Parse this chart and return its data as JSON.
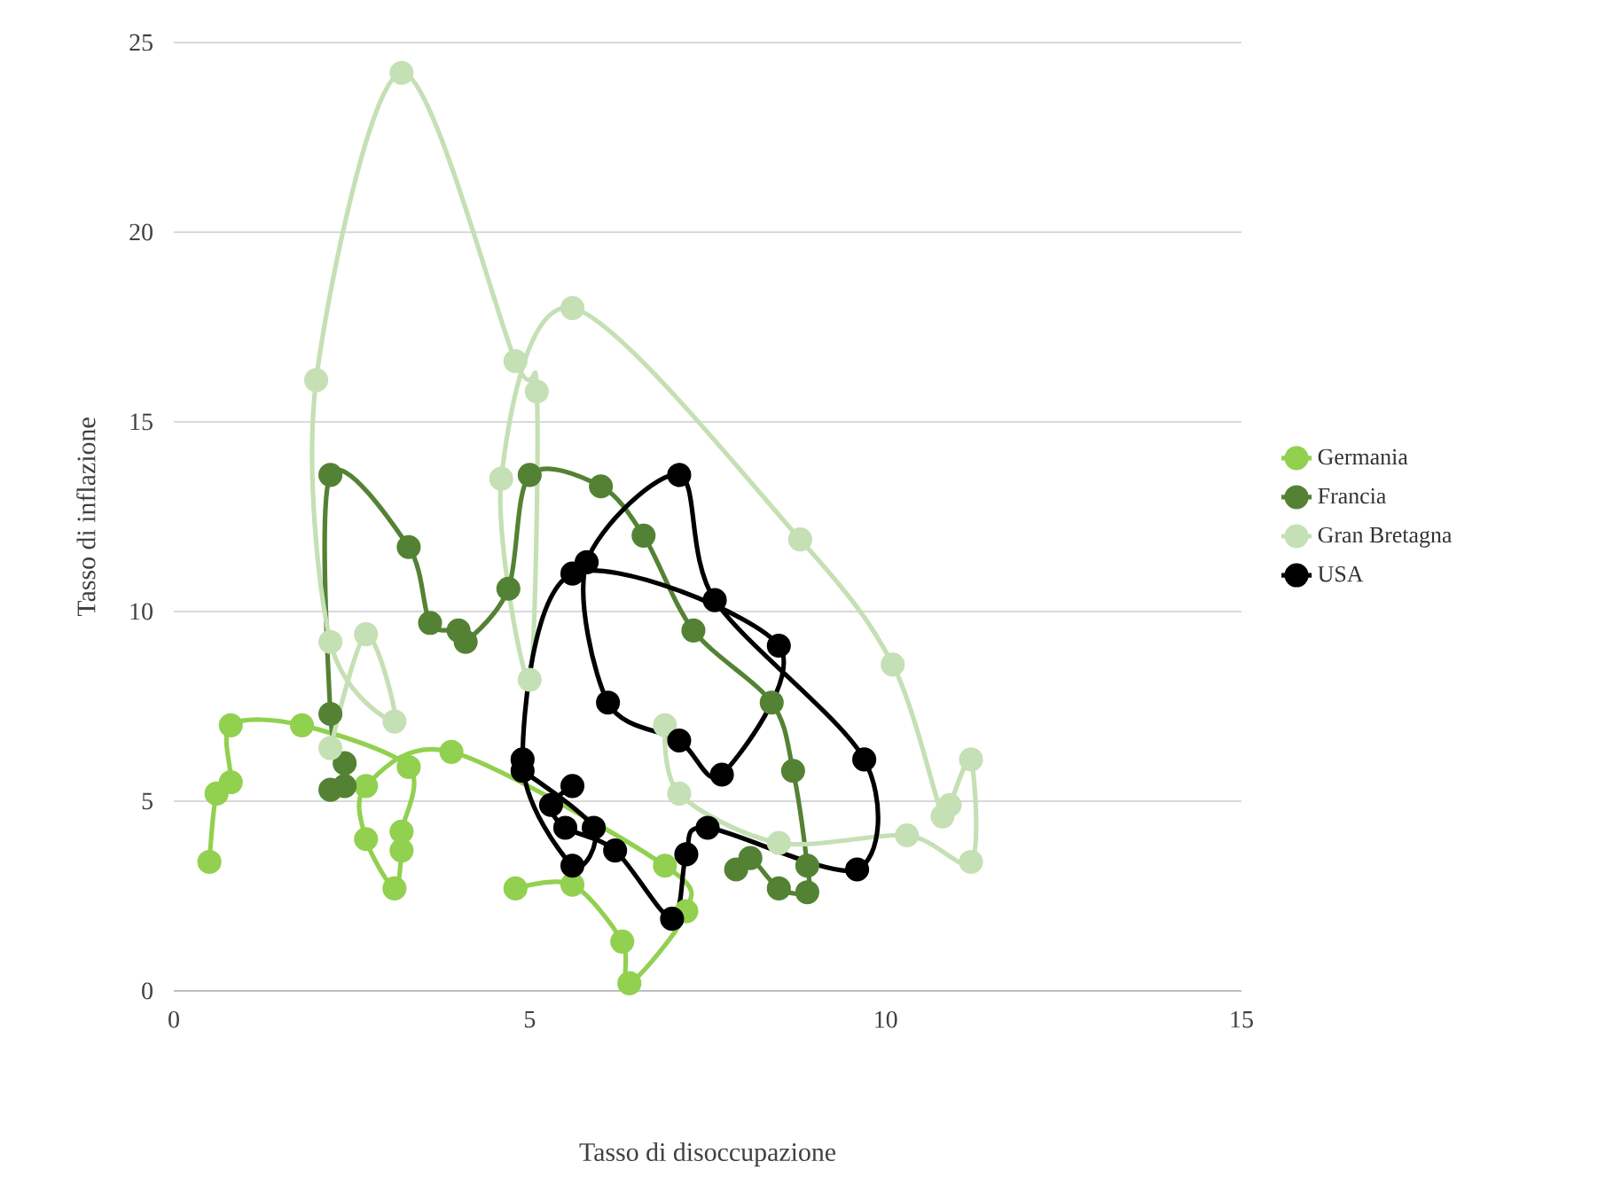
{
  "chart_data": {
    "type": "line",
    "xlabel": "Tasso di disoccupazione",
    "ylabel": "Tasso di inflazione",
    "xlim": [
      0,
      15
    ],
    "xticks": [
      0,
      5,
      10,
      15
    ],
    "ylim": [
      0,
      25
    ],
    "yticks": [
      0,
      5,
      10,
      15,
      20,
      25
    ],
    "grid": "y",
    "legend": "right",
    "marker": "circle",
    "line_style": "solid",
    "series": [
      {
        "name": "Germania",
        "color": "#92d050",
        "x": [
          0.5,
          0.6,
          0.8,
          0.8,
          1.8,
          3.3,
          3.2,
          3.2,
          3.1,
          2.7,
          2.7,
          3.9,
          6.9,
          7.2,
          6.4,
          6.3,
          5.6,
          4.8
        ],
        "values": [
          3.4,
          5.2,
          5.5,
          7.0,
          7.0,
          5.9,
          4.2,
          3.7,
          2.7,
          4.0,
          5.4,
          6.3,
          3.3,
          2.1,
          0.2,
          1.3,
          2.8,
          2.7
        ]
      },
      {
        "name": "Francia",
        "color": "#548235",
        "x": [
          2.2,
          2.4,
          2.4,
          2.2,
          2.2,
          3.3,
          3.6,
          4.0,
          4.1,
          4.7,
          5.0,
          6.0,
          6.6,
          7.3,
          8.4,
          8.7,
          8.9,
          8.9,
          8.5,
          8.1,
          7.9
        ],
        "values": [
          5.3,
          5.4,
          6.0,
          7.3,
          13.6,
          11.7,
          9.7,
          9.5,
          9.2,
          10.6,
          13.6,
          13.3,
          12.0,
          9.5,
          7.6,
          5.8,
          3.3,
          2.6,
          2.7,
          3.5,
          3.2
        ]
      },
      {
        "name": "Gran Bretagna",
        "color": "#c5e0b4",
        "x": [
          2.2,
          2.7,
          3.1,
          2.2,
          2.0,
          3.2,
          4.8,
          5.1,
          5.0,
          4.6,
          5.6,
          8.8,
          10.1,
          10.8,
          10.9,
          11.2,
          11.2,
          10.3,
          8.5,
          7.1,
          6.9
        ],
        "values": [
          6.4,
          9.4,
          7.1,
          9.2,
          16.1,
          24.2,
          16.6,
          15.8,
          8.2,
          13.5,
          18.0,
          11.9,
          8.6,
          4.6,
          4.9,
          6.1,
          3.4,
          4.1,
          3.9,
          5.2,
          7.0
        ]
      },
      {
        "name": "USA",
        "color": "#000000",
        "x": [
          4.9,
          5.9,
          5.6,
          4.9,
          5.6,
          8.5,
          7.7,
          7.1,
          6.1,
          5.8,
          7.1,
          7.6,
          9.7,
          9.6,
          7.5,
          7.2,
          7.0,
          6.2,
          5.5,
          5.3,
          5.6
        ],
        "values": [
          5.8,
          4.3,
          3.3,
          6.1,
          11.0,
          9.1,
          5.7,
          6.6,
          7.6,
          11.3,
          13.6,
          10.3,
          6.1,
          3.2,
          4.3,
          3.6,
          1.9,
          3.7,
          4.3,
          4.9,
          5.4
        ]
      }
    ]
  }
}
